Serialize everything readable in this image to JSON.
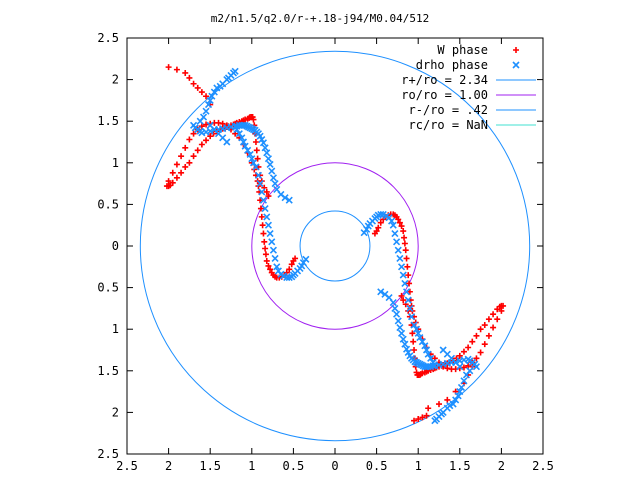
{
  "chart_data": {
    "type": "scatter",
    "title": "m2/n1.5/q2.0/r-+.18-j94/M0.04/512",
    "xlabel": "",
    "ylabel": "",
    "xlim": [
      -2.5,
      2.5
    ],
    "ylim": [
      -2.5,
      2.5
    ],
    "grid": false,
    "legend_position": "top-right",
    "x_ticks": [
      {
        "value": -2.5,
        "label": "2.5"
      },
      {
        "value": -2.0,
        "label": "2"
      },
      {
        "value": -1.5,
        "label": "1.5"
      },
      {
        "value": -1.0,
        "label": "1"
      },
      {
        "value": -0.5,
        "label": "0.5"
      },
      {
        "value": 0,
        "label": "0"
      },
      {
        "value": 0.5,
        "label": "0.5"
      },
      {
        "value": 1.0,
        "label": "1"
      },
      {
        "value": 1.5,
        "label": "1.5"
      },
      {
        "value": 2.0,
        "label": "2"
      },
      {
        "value": 2.5,
        "label": "2.5"
      }
    ],
    "y_ticks": [
      {
        "value": 2.5,
        "label": "2.5"
      },
      {
        "value": 2.0,
        "label": "2"
      },
      {
        "value": 1.5,
        "label": "1.5"
      },
      {
        "value": 1.0,
        "label": "1"
      },
      {
        "value": 0.5,
        "label": "0.5"
      },
      {
        "value": 0,
        "label": "0"
      },
      {
        "value": -0.5,
        "label": "0.5"
      },
      {
        "value": -1.0,
        "label": "1"
      },
      {
        "value": -1.5,
        "label": "1.5"
      },
      {
        "value": -2.0,
        "label": "2"
      },
      {
        "value": -2.5,
        "label": "2.5"
      }
    ],
    "circles": [
      {
        "name": "r+/ro = 2.34",
        "radius": 2.34,
        "color": "#1e90ff"
      },
      {
        "name": "ro/ro = 1.00",
        "radius": 1.0,
        "color": "#a020f0"
      },
      {
        "name": "r-/ro = .42",
        "radius": 0.42,
        "color": "#1e90ff"
      },
      {
        "name": "rc/ro = NaN",
        "radius": null,
        "color": "#40e0d0"
      }
    ],
    "series": [
      {
        "name": "W phase",
        "marker": "plus",
        "color": "#ff0000",
        "x": [
          0.8,
          0.82,
          0.85,
          0.88,
          0.9,
          0.92,
          0.93,
          0.94,
          0.95,
          0.96,
          0.97,
          0.98,
          0.99,
          1.0,
          1.02,
          1.03,
          1.05,
          1.08,
          1.1,
          1.12,
          1.15,
          1.18,
          1.2,
          1.22,
          1.25,
          1.28,
          1.3,
          1.32,
          1.35,
          1.38,
          1.42,
          1.46,
          1.5,
          1.55,
          1.6,
          1.65,
          1.7,
          1.75,
          1.8,
          1.85,
          1.9,
          1.95,
          1.98,
          2.0,
          2.02,
          2.0,
          1.95,
          1.9,
          1.85,
          1.8,
          1.75,
          1.7,
          1.65,
          1.6,
          1.55,
          1.5,
          1.45,
          1.4,
          1.35,
          1.3,
          1.25,
          1.2,
          1.15,
          1.1,
          1.05,
          1.0,
          0.97,
          0.95,
          0.93,
          0.92,
          0.91,
          0.9,
          0.89,
          0.88,
          0.87,
          0.86,
          0.85,
          0.84,
          0.83,
          0.82,
          0.8,
          0.78,
          0.76,
          0.74,
          0.72,
          0.7,
          0.67,
          0.64,
          0.61,
          0.58,
          0.55,
          0.52,
          0.5,
          0.48,
          0.95,
          1.0,
          1.05,
          1.1,
          1.12,
          1.25,
          1.35,
          1.45,
          1.55,
          1.6,
          1.65,
          -0.8,
          -0.82,
          -0.85,
          -0.88,
          -0.9,
          -0.92,
          -0.93,
          -0.94,
          -0.95,
          -0.96,
          -0.97,
          -0.98,
          -0.99,
          -1.0,
          -1.02,
          -1.03,
          -1.05,
          -1.08,
          -1.1,
          -1.12,
          -1.15,
          -1.18,
          -1.2,
          -1.22,
          -1.25,
          -1.28,
          -1.3,
          -1.32,
          -1.35,
          -1.38,
          -1.42,
          -1.46,
          -1.5,
          -1.55,
          -1.6,
          -1.65,
          -1.7,
          -1.75,
          -1.8,
          -1.85,
          -1.9,
          -1.95,
          -1.98,
          -2.0,
          -2.02,
          -2.0,
          -1.95,
          -1.9,
          -1.85,
          -1.8,
          -1.75,
          -1.7,
          -1.65,
          -1.6,
          -1.55,
          -1.5,
          -1.45,
          -1.4,
          -1.35,
          -1.3,
          -1.25,
          -1.2,
          -1.15,
          -1.1,
          -1.05,
          -1.0,
          -0.97,
          -0.95,
          -0.93,
          -0.92,
          -0.91,
          -0.9,
          -0.89,
          -0.88,
          -0.87,
          -0.86,
          -0.85,
          -0.84,
          -0.83,
          -0.82,
          -0.8,
          -0.78,
          -0.76,
          -0.74,
          -0.72,
          -0.7,
          -0.67,
          -0.64,
          -0.61,
          -0.58,
          -0.55,
          -0.52,
          -0.5,
          -0.48,
          -1.5,
          -1.55,
          -1.6,
          -1.65,
          -1.7,
          -1.75,
          -1.8,
          -1.9,
          -2.0
        ],
        "y": [
          -0.6,
          -0.65,
          -0.7,
          -0.78,
          -0.85,
          -0.95,
          -1.05,
          -1.15,
          -1.25,
          -1.35,
          -1.45,
          -1.52,
          -1.55,
          -1.55,
          -1.55,
          -1.54,
          -1.53,
          -1.52,
          -1.51,
          -1.5,
          -1.49,
          -1.48,
          -1.47,
          -1.46,
          -1.45,
          -1.44,
          -1.43,
          -1.42,
          -1.41,
          -1.4,
          -1.38,
          -1.35,
          -1.32,
          -1.27,
          -1.22,
          -1.15,
          -1.08,
          -1.0,
          -0.95,
          -0.88,
          -0.82,
          -0.76,
          -0.73,
          -0.72,
          -0.72,
          -0.78,
          -0.88,
          -0.98,
          -1.08,
          -1.18,
          -1.28,
          -1.35,
          -1.4,
          -1.44,
          -1.46,
          -1.47,
          -1.48,
          -1.48,
          -1.47,
          -1.45,
          -1.4,
          -1.35,
          -1.3,
          -1.22,
          -1.12,
          -1.0,
          -0.92,
          -0.85,
          -0.78,
          -0.72,
          -0.65,
          -0.55,
          -0.45,
          -0.35,
          -0.25,
          -0.15,
          -0.05,
          0.03,
          0.1,
          0.18,
          0.24,
          0.28,
          0.32,
          0.35,
          0.37,
          0.38,
          0.38,
          0.37,
          0.35,
          0.32,
          0.28,
          0.22,
          0.18,
          0.15,
          -2.1,
          -2.08,
          -2.06,
          -2.04,
          -1.95,
          -1.9,
          -1.85,
          -1.75,
          -1.65,
          -1.55,
          -1.45,
          0.6,
          0.65,
          0.7,
          0.78,
          0.85,
          0.95,
          1.05,
          1.15,
          1.25,
          1.35,
          1.45,
          1.52,
          1.55,
          1.55,
          1.55,
          1.54,
          1.53,
          1.52,
          1.51,
          1.5,
          1.49,
          1.48,
          1.47,
          1.46,
          1.45,
          1.44,
          1.43,
          1.42,
          1.41,
          1.4,
          1.38,
          1.35,
          1.32,
          1.27,
          1.22,
          1.15,
          1.08,
          1.0,
          0.95,
          0.88,
          0.82,
          0.76,
          0.73,
          0.72,
          0.72,
          0.78,
          0.88,
          0.98,
          1.08,
          1.18,
          1.28,
          1.35,
          1.4,
          1.44,
          1.46,
          1.47,
          1.48,
          1.48,
          1.47,
          1.45,
          1.4,
          1.35,
          1.3,
          1.22,
          1.12,
          1.0,
          0.92,
          0.85,
          0.78,
          0.72,
          0.65,
          0.55,
          0.45,
          0.35,
          0.25,
          0.15,
          0.05,
          -0.03,
          -0.1,
          -0.18,
          -0.24,
          -0.28,
          -0.32,
          -0.35,
          -0.37,
          -0.38,
          -0.38,
          -0.37,
          -0.35,
          -0.32,
          -0.28,
          -0.22,
          -0.18,
          -0.15,
          1.7,
          1.8,
          1.85,
          1.9,
          1.95,
          2.02,
          2.08,
          2.12,
          2.15
        ]
      },
      {
        "name": "drho phase",
        "marker": "cross",
        "color": "#1e90ff",
        "x": [
          0.55,
          0.6,
          0.65,
          0.7,
          0.72,
          0.74,
          0.76,
          0.78,
          0.8,
          0.82,
          0.84,
          0.86,
          0.88,
          0.9,
          0.92,
          0.94,
          0.96,
          0.98,
          1.0,
          1.02,
          1.04,
          1.06,
          1.08,
          1.1,
          1.12,
          1.15,
          1.18,
          1.2,
          1.25,
          1.3,
          1.35,
          1.4,
          1.45,
          1.5,
          1.55,
          1.6,
          1.62,
          1.65,
          1.68,
          1.7,
          1.62,
          1.58,
          1.55,
          1.52,
          1.5,
          1.48,
          1.45,
          1.42,
          1.38,
          1.35,
          1.3,
          1.28,
          1.25,
          1.22,
          1.2,
          1.18,
          1.15,
          1.12,
          1.1,
          1.08,
          1.05,
          1.02,
          1.0,
          0.98,
          0.95,
          0.92,
          0.9,
          0.88,
          0.86,
          0.84,
          0.82,
          0.8,
          0.78,
          0.76,
          0.74,
          0.72,
          0.7,
          0.68,
          0.65,
          0.62,
          0.58,
          0.55,
          0.52,
          0.5,
          0.48,
          0.45,
          0.42,
          0.4,
          0.38,
          0.35,
          1.3,
          1.35,
          1.4,
          1.45,
          1.5,
          -0.55,
          -0.6,
          -0.65,
          -0.7,
          -0.72,
          -0.74,
          -0.76,
          -0.78,
          -0.8,
          -0.82,
          -0.84,
          -0.86,
          -0.88,
          -0.9,
          -0.92,
          -0.94,
          -0.96,
          -0.98,
          -1.0,
          -1.02,
          -1.04,
          -1.06,
          -1.08,
          -1.1,
          -1.12,
          -1.15,
          -1.18,
          -1.2,
          -1.25,
          -1.3,
          -1.35,
          -1.4,
          -1.45,
          -1.5,
          -1.55,
          -1.6,
          -1.62,
          -1.65,
          -1.68,
          -1.7,
          -1.62,
          -1.58,
          -1.55,
          -1.52,
          -1.5,
          -1.48,
          -1.45,
          -1.42,
          -1.38,
          -1.35,
          -1.3,
          -1.28,
          -1.25,
          -1.22,
          -1.2,
          -1.18,
          -1.15,
          -1.12,
          -1.1,
          -1.08,
          -1.05,
          -1.02,
          -1.0,
          -0.98,
          -0.95,
          -0.92,
          -0.9,
          -0.88,
          -0.86,
          -0.84,
          -0.82,
          -0.8,
          -0.78,
          -0.76,
          -0.74,
          -0.72,
          -0.7,
          -0.68,
          -0.65,
          -0.62,
          -0.58,
          -0.55,
          -0.52,
          -0.5,
          -0.48,
          -0.45,
          -0.42,
          -0.4,
          -0.38,
          -0.35,
          -1.3,
          -1.35,
          -1.4,
          -1.45,
          -1.5
        ],
        "y": [
          -0.55,
          -0.58,
          -0.62,
          -0.68,
          -0.75,
          -0.82,
          -0.9,
          -0.98,
          -1.05,
          -1.12,
          -1.18,
          -1.24,
          -1.28,
          -1.32,
          -1.35,
          -1.37,
          -1.39,
          -1.4,
          -1.41,
          -1.42,
          -1.43,
          -1.44,
          -1.45,
          -1.45,
          -1.45,
          -1.45,
          -1.44,
          -1.44,
          -1.43,
          -1.42,
          -1.41,
          -1.4,
          -1.4,
          -1.38,
          -1.37,
          -1.36,
          -1.38,
          -1.4,
          -1.42,
          -1.45,
          -1.5,
          -1.55,
          -1.62,
          -1.7,
          -1.75,
          -1.8,
          -1.85,
          -1.9,
          -1.92,
          -1.95,
          -2.0,
          -2.02,
          -2.05,
          -2.08,
          -2.1,
          -1.4,
          -1.35,
          -1.3,
          -1.25,
          -1.2,
          -1.15,
          -1.1,
          -1.05,
          -1.0,
          -0.95,
          -0.85,
          -0.75,
          -0.65,
          -0.55,
          -0.45,
          -0.35,
          -0.25,
          -0.15,
          -0.05,
          0.05,
          0.15,
          0.25,
          0.3,
          0.34,
          0.36,
          0.38,
          0.38,
          0.37,
          0.35,
          0.33,
          0.3,
          0.27,
          0.24,
          0.2,
          0.16,
          -1.25,
          -1.3,
          -1.35,
          -1.4,
          -1.45,
          0.55,
          0.58,
          0.62,
          0.68,
          0.75,
          0.82,
          0.9,
          0.98,
          1.05,
          1.12,
          1.18,
          1.24,
          1.28,
          1.32,
          1.35,
          1.37,
          1.39,
          1.4,
          1.41,
          1.42,
          1.43,
          1.44,
          1.45,
          1.45,
          1.45,
          1.45,
          1.44,
          1.44,
          1.43,
          1.42,
          1.41,
          1.4,
          1.4,
          1.38,
          1.37,
          1.36,
          1.38,
          1.4,
          1.42,
          1.45,
          1.5,
          1.55,
          1.62,
          1.7,
          1.75,
          1.8,
          1.85,
          1.9,
          1.92,
          1.95,
          2.0,
          2.02,
          2.05,
          2.08,
          2.1,
          1.4,
          1.35,
          1.3,
          1.25,
          1.2,
          1.15,
          1.1,
          1.05,
          1.0,
          0.95,
          0.85,
          0.75,
          0.65,
          0.55,
          0.45,
          0.35,
          0.25,
          0.15,
          0.05,
          -0.05,
          -0.15,
          -0.25,
          -0.3,
          -0.34,
          -0.36,
          -0.38,
          -0.38,
          -0.37,
          -0.35,
          -0.33,
          -0.3,
          -0.27,
          -0.24,
          -0.2,
          -0.16,
          1.25,
          1.3,
          1.35,
          1.4,
          1.45
        ]
      }
    ],
    "legend": [
      {
        "label": "W phase",
        "type": "plus",
        "color": "#ff0000"
      },
      {
        "label": "drho phase",
        "type": "cross",
        "color": "#1e90ff"
      },
      {
        "label": "r+/ro = 2.34",
        "type": "line",
        "color": "#1e90ff"
      },
      {
        "label": "ro/ro = 1.00",
        "type": "line",
        "color": "#a020f0"
      },
      {
        "label": "r-/ro = .42",
        "type": "line",
        "color": "#1e90ff"
      },
      {
        "label": "rc/ro = NaN",
        "type": "line",
        "color": "#40e0d0"
      }
    ]
  }
}
